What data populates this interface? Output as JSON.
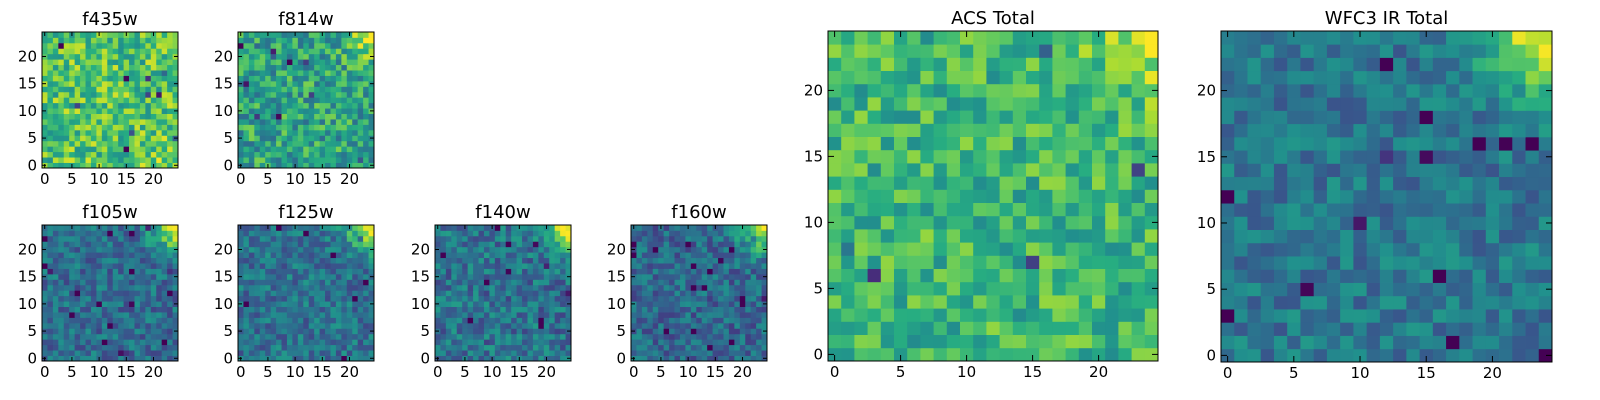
{
  "chart_data": [
    {
      "type": "heatmap",
      "title": "f435w",
      "grid_size": 25,
      "xlim": [
        -0.5,
        24.5
      ],
      "ylim": [
        -0.5,
        24.5
      ],
      "xticks": [
        0,
        5,
        10,
        15,
        20
      ],
      "yticks": [
        0,
        5,
        10,
        15,
        20
      ],
      "colormap": "viridis",
      "base_level": 0.72,
      "noise_amplitude": 0.22,
      "seed": 435,
      "features": [
        {
          "kind": "corner-glow",
          "location": "bottom-right",
          "strength": 0.12
        }
      ]
    },
    {
      "type": "heatmap",
      "title": "f814w",
      "grid_size": 25,
      "xlim": [
        -0.5,
        24.5
      ],
      "ylim": [
        -0.5,
        24.5
      ],
      "xticks": [
        0,
        5,
        10,
        15,
        20
      ],
      "yticks": [
        0,
        5,
        10,
        15,
        20
      ],
      "colormap": "viridis",
      "base_level": 0.58,
      "noise_amplitude": 0.22,
      "seed": 814,
      "features": [
        {
          "kind": "corner-glow",
          "location": "top-right",
          "strength": 0.35
        }
      ]
    },
    {
      "type": "heatmap",
      "title": "f105w",
      "grid_size": 25,
      "xlim": [
        -0.5,
        24.5
      ],
      "ylim": [
        -0.5,
        24.5
      ],
      "xticks": [
        0,
        5,
        10,
        15,
        20
      ],
      "yticks": [
        0,
        5,
        10,
        15,
        20
      ],
      "colormap": "viridis",
      "base_level": 0.36,
      "noise_amplitude": 0.16,
      "seed": 105,
      "features": [
        {
          "kind": "corner-glow",
          "location": "top-right",
          "strength": 0.55
        }
      ]
    },
    {
      "type": "heatmap",
      "title": "f125w",
      "grid_size": 25,
      "xlim": [
        -0.5,
        24.5
      ],
      "ylim": [
        -0.5,
        24.5
      ],
      "xticks": [
        0,
        5,
        10,
        15,
        20
      ],
      "yticks": [
        0,
        5,
        10,
        15,
        20
      ],
      "colormap": "viridis",
      "base_level": 0.38,
      "noise_amplitude": 0.16,
      "seed": 125,
      "features": [
        {
          "kind": "corner-glow",
          "location": "top-right",
          "strength": 0.55
        }
      ]
    },
    {
      "type": "heatmap",
      "title": "f140w",
      "grid_size": 25,
      "xlim": [
        -0.5,
        24.5
      ],
      "ylim": [
        -0.5,
        24.5
      ],
      "xticks": [
        0,
        5,
        10,
        15,
        20
      ],
      "yticks": [
        0,
        5,
        10,
        15,
        20
      ],
      "colormap": "viridis",
      "base_level": 0.38,
      "noise_amplitude": 0.18,
      "seed": 140,
      "features": [
        {
          "kind": "corner-glow",
          "location": "top-right",
          "strength": 0.58
        }
      ]
    },
    {
      "type": "heatmap",
      "title": "f160w",
      "grid_size": 25,
      "xlim": [
        -0.5,
        24.5
      ],
      "ylim": [
        -0.5,
        24.5
      ],
      "xticks": [
        0,
        5,
        10,
        15,
        20
      ],
      "yticks": [
        0,
        5,
        10,
        15,
        20
      ],
      "colormap": "viridis",
      "base_level": 0.34,
      "noise_amplitude": 0.16,
      "seed": 160,
      "features": [
        {
          "kind": "corner-glow",
          "location": "top-right",
          "strength": 0.62
        }
      ]
    },
    {
      "type": "heatmap",
      "title": "ACS Total",
      "grid_size": 25,
      "xlim": [
        -0.5,
        24.5
      ],
      "ylim": [
        -0.5,
        24.5
      ],
      "xticks": [
        0,
        5,
        10,
        15,
        20
      ],
      "yticks": [
        0,
        5,
        10,
        15,
        20
      ],
      "colormap": "viridis",
      "base_level": 0.66,
      "noise_amplitude": 0.18,
      "seed": 1001,
      "features": [
        {
          "kind": "corner-glow",
          "location": "top-right",
          "strength": 0.28
        }
      ]
    },
    {
      "type": "heatmap",
      "title": "WFC3 IR Total",
      "grid_size": 25,
      "xlim": [
        -0.5,
        24.5
      ],
      "ylim": [
        -0.5,
        24.5
      ],
      "xticks": [
        0,
        5,
        10,
        15,
        20
      ],
      "yticks": [
        0,
        5,
        10,
        15,
        20
      ],
      "colormap": "viridis",
      "base_level": 0.4,
      "noise_amplitude": 0.14,
      "seed": 2002,
      "features": [
        {
          "kind": "corner-glow",
          "location": "top-right",
          "strength": 0.55
        }
      ]
    }
  ]
}
